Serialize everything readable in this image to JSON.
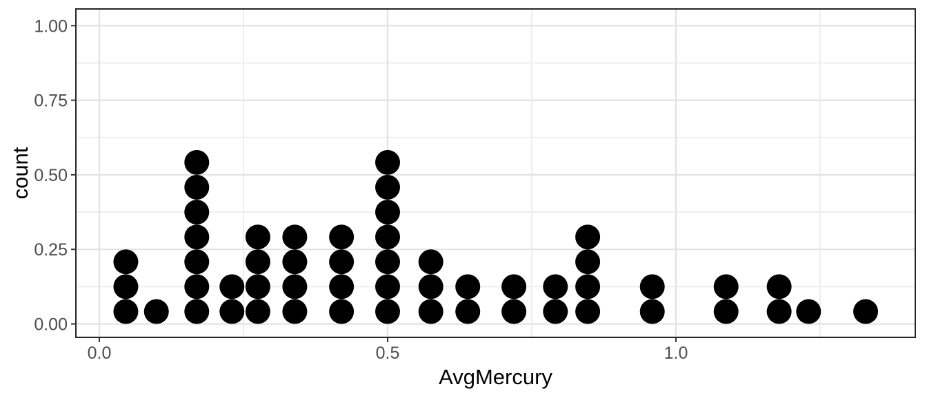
{
  "chart_data": {
    "type": "scatter",
    "variant": "stacked-dotplot",
    "title": "",
    "xlabel": "AvgMercury",
    "ylabel": "count",
    "x_axis": {
      "ticks": [
        {
          "value": 0.0,
          "label": "0.0"
        },
        {
          "value": 0.5,
          "label": "0.5"
        },
        {
          "value": 1.0,
          "label": "1.0"
        }
      ],
      "minor_gridlines": [
        0.25,
        0.75,
        1.25
      ],
      "range": [
        -0.043,
        1.415
      ]
    },
    "y_axis": {
      "ticks": [
        {
          "value": 0.0,
          "label": "0.00"
        },
        {
          "value": 0.25,
          "label": "0.25"
        },
        {
          "value": 0.5,
          "label": "0.50"
        },
        {
          "value": 0.75,
          "label": "0.75"
        },
        {
          "value": 1.0,
          "label": "1.00"
        }
      ],
      "minor_gridlines": [
        0.125,
        0.375,
        0.625,
        0.875
      ],
      "range": [
        -0.046,
        1.056
      ]
    },
    "dot_height_units": 0.0833,
    "binwidth_approx": 0.043,
    "total_dots": 53,
    "stacks": [
      {
        "x": 0.046,
        "count": 3
      },
      {
        "x": 0.099,
        "count": 1
      },
      {
        "x": 0.169,
        "count": 7
      },
      {
        "x": 0.23,
        "count": 2
      },
      {
        "x": 0.275,
        "count": 4
      },
      {
        "x": 0.339,
        "count": 4
      },
      {
        "x": 0.42,
        "count": 4
      },
      {
        "x": 0.5,
        "count": 7
      },
      {
        "x": 0.575,
        "count": 3
      },
      {
        "x": 0.639,
        "count": 2
      },
      {
        "x": 0.719,
        "count": 2
      },
      {
        "x": 0.791,
        "count": 2
      },
      {
        "x": 0.847,
        "count": 4
      },
      {
        "x": 0.959,
        "count": 2
      },
      {
        "x": 1.087,
        "count": 2
      },
      {
        "x": 1.179,
        "count": 2
      },
      {
        "x": 1.23,
        "count": 1
      },
      {
        "x": 1.329,
        "count": 1
      }
    ],
    "legend": "none",
    "grid": "on",
    "colors": {
      "dot": "#000000",
      "grid_major": "#E2E2E2",
      "grid_minor": "#EDEDED",
      "panel_border": "#262626",
      "tick": "#333333",
      "axis_text": "#4D4D4D",
      "axis_title": "#000000",
      "background": "#FFFFFF"
    }
  }
}
